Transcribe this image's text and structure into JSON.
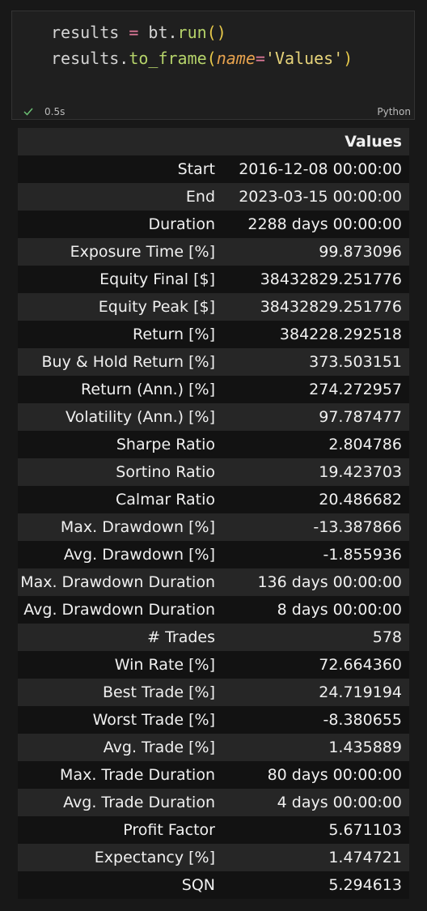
{
  "code": {
    "lines": [
      [
        "results",
        " = ",
        "bt.",
        "run",
        "()"
      ],
      [
        "results.",
        "to_frame",
        "(",
        "name",
        "=",
        "'Values'",
        ")"
      ]
    ],
    "duration": "0.5s",
    "language": "Python"
  },
  "table": {
    "header": "Values",
    "rows": [
      [
        "Start",
        "2016-12-08 00:00:00"
      ],
      [
        "End",
        "2023-03-15 00:00:00"
      ],
      [
        "Duration",
        "2288 days 00:00:00"
      ],
      [
        "Exposure Time [%]",
        "99.873096"
      ],
      [
        "Equity Final [$]",
        "38432829.251776"
      ],
      [
        "Equity Peak [$]",
        "38432829.251776"
      ],
      [
        "Return [%]",
        "384228.292518"
      ],
      [
        "Buy & Hold Return [%]",
        "373.503151"
      ],
      [
        "Return (Ann.) [%]",
        "274.272957"
      ],
      [
        "Volatility (Ann.) [%]",
        "97.787477"
      ],
      [
        "Sharpe Ratio",
        "2.804786"
      ],
      [
        "Sortino Ratio",
        "19.423703"
      ],
      [
        "Calmar Ratio",
        "20.486682"
      ],
      [
        "Max. Drawdown [%]",
        "-13.387866"
      ],
      [
        "Avg. Drawdown [%]",
        "-1.855936"
      ],
      [
        "Max. Drawdown Duration",
        "136 days 00:00:00"
      ],
      [
        "Avg. Drawdown Duration",
        "8 days 00:00:00"
      ],
      [
        "# Trades",
        "578"
      ],
      [
        "Win Rate [%]",
        "72.664360"
      ],
      [
        "Best Trade [%]",
        "24.719194"
      ],
      [
        "Worst Trade [%]",
        "-8.380655"
      ],
      [
        "Avg. Trade [%]",
        "1.435889"
      ],
      [
        "Max. Trade Duration",
        "80 days 00:00:00"
      ],
      [
        "Avg. Trade Duration",
        "4 days 00:00:00"
      ],
      [
        "Profit Factor",
        "5.671103"
      ],
      [
        "Expectancy [%]",
        "1.474721"
      ],
      [
        "SQN",
        "5.294613"
      ]
    ]
  }
}
